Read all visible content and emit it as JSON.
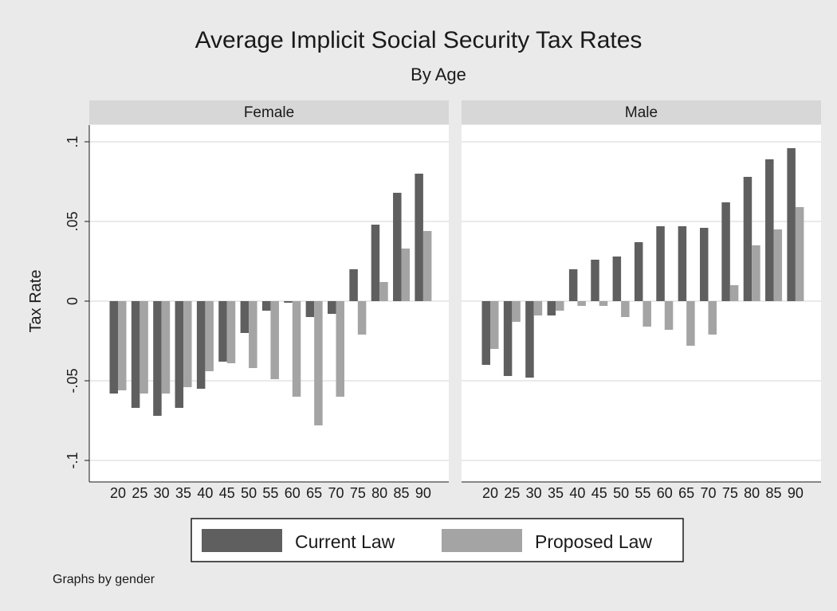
{
  "chart_data": {
    "type": "bar",
    "title": "Average Implicit Social Security Tax Rates",
    "subtitle": "By Age",
    "ylabel": "Tax Rate",
    "xlabel": "",
    "ylim": [
      -0.1,
      0.1
    ],
    "yticks": [
      -0.1,
      -0.05,
      0,
      0.05,
      0.1
    ],
    "ytick_labels": [
      "-.1",
      "-.05",
      "0",
      ".05",
      ".1"
    ],
    "grid": true,
    "categories": [
      "20",
      "25",
      "30",
      "35",
      "40",
      "45",
      "50",
      "55",
      "60",
      "65",
      "70",
      "75",
      "80",
      "85",
      "90"
    ],
    "legend": {
      "placement": "bottom",
      "entries": [
        "Current Law",
        "Proposed Law"
      ]
    },
    "series_colors": [
      "#5f5f5f",
      "#a4a4a4"
    ],
    "note": "Graphs by gender",
    "panels": [
      {
        "name": "Female",
        "series": [
          {
            "name": "Current Law",
            "values": [
              -0.058,
              -0.067,
              -0.072,
              -0.067,
              -0.055,
              -0.038,
              -0.02,
              -0.006,
              -0.001,
              -0.01,
              -0.008,
              0.02,
              0.048,
              0.068,
              0.08
            ]
          },
          {
            "name": "Proposed Law",
            "values": [
              -0.056,
              -0.058,
              -0.058,
              -0.054,
              -0.044,
              -0.039,
              -0.042,
              -0.049,
              -0.06,
              -0.078,
              -0.06,
              -0.021,
              0.012,
              0.033,
              0.044
            ]
          }
        ]
      },
      {
        "name": "Male",
        "series": [
          {
            "name": "Current Law",
            "values": [
              -0.04,
              -0.047,
              -0.048,
              -0.009,
              0.02,
              0.026,
              0.028,
              0.037,
              0.047,
              0.047,
              0.046,
              0.062,
              0.078,
              0.089,
              0.096
            ]
          },
          {
            "name": "Proposed Law",
            "values": [
              -0.03,
              -0.013,
              -0.009,
              -0.006,
              -0.003,
              -0.003,
              -0.01,
              -0.016,
              -0.018,
              -0.028,
              -0.021,
              0.01,
              0.035,
              0.045,
              0.059
            ]
          }
        ]
      }
    ]
  }
}
